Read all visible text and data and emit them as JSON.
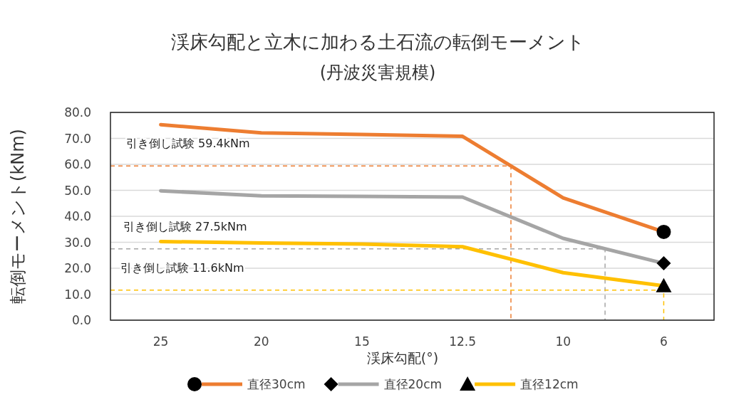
{
  "chart_data": {
    "type": "line",
    "title": "渓床勾配と立木に加わる土石流の転倒モーメント",
    "subtitle": "(丹波災害規模)",
    "xlabel": "渓床勾配(°)",
    "ylabel": "転倒モーメント(kNm)",
    "categories": [
      "25",
      "20",
      "15",
      "12.5",
      "10",
      "6"
    ],
    "series": [
      {
        "name": "直径30cm",
        "color": "#ed7d31",
        "values": [
          75.3,
          72.1,
          71.5,
          70.8,
          47.1,
          34.0
        ]
      },
      {
        "name": "直径20cm",
        "color": "#a5a5a5",
        "values": [
          49.8,
          47.9,
          47.7,
          47.4,
          31.5,
          21.9
        ]
      },
      {
        "name": "直径12cm",
        "color": "#ffc000",
        "values": [
          30.3,
          29.7,
          29.3,
          28.3,
          18.3,
          13.2
        ]
      }
    ],
    "ylim": [
      0,
      80
    ],
    "yticks": [
      {
        "value": 0,
        "label": "0.0"
      },
      {
        "value": 10,
        "label": "10.0"
      },
      {
        "value": 20,
        "label": "20.0"
      },
      {
        "value": 30,
        "label": "30.0"
      },
      {
        "value": 40,
        "label": "40.0"
      },
      {
        "value": 50,
        "label": "50.0"
      },
      {
        "value": 60,
        "label": "60.0"
      },
      {
        "value": 70,
        "label": "70.0"
      },
      {
        "value": 80,
        "label": "80.0"
      }
    ],
    "grid": "y",
    "legend": "bottom",
    "line_style": "solid",
    "ref_lines": [
      {
        "axis": "y",
        "value": 59.4,
        "label": "引き倒し試験 59.4kNm",
        "color": "#ed7d31",
        "line_style": "dashed"
      },
      {
        "axis": "y",
        "value": 27.5,
        "label": "引き倒し試験 27.5kNm",
        "color": "#a5a5a5",
        "line_style": "dashed"
      },
      {
        "axis": "y",
        "value": 11.6,
        "label": "引き倒し試験 11.6kNm",
        "color": "#ffc000",
        "line_style": "dashed"
      }
    ]
  }
}
